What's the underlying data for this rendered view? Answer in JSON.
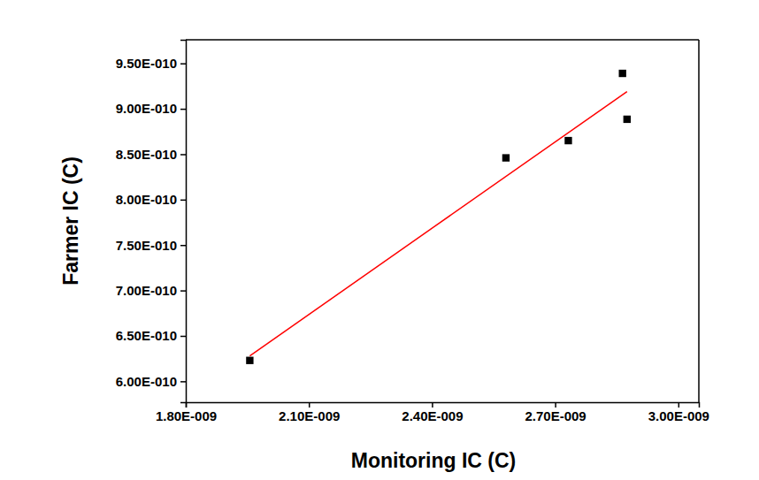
{
  "chart_data": {
    "type": "scatter",
    "x_label": "Monitoring IC (C)",
    "y_label": "Farmer IC (C)",
    "xlim": [
      1.8e-09,
      3.05e-09
    ],
    "ylim": [
      5.77e-10,
      9.76e-10
    ],
    "xticks": [
      {
        "value": 1.8e-09,
        "label": "1.80E-009"
      },
      {
        "value": 2.1e-09,
        "label": "2.10E-009"
      },
      {
        "value": 2.4e-09,
        "label": "2.40E-009"
      },
      {
        "value": 2.7e-09,
        "label": "2.70E-009"
      },
      {
        "value": 3e-09,
        "label": "3.00E-009"
      }
    ],
    "yticks": [
      {
        "value": 6e-10,
        "label": "6.00E-010"
      },
      {
        "value": 6.5e-10,
        "label": "6.50E-010"
      },
      {
        "value": 7e-10,
        "label": "7.00E-010"
      },
      {
        "value": 7.5e-10,
        "label": "7.50E-010"
      },
      {
        "value": 8e-10,
        "label": "8.00E-010"
      },
      {
        "value": 8.5e-10,
        "label": "8.50E-010"
      },
      {
        "value": 9e-10,
        "label": "9.00E-010"
      },
      {
        "value": 9.5e-10,
        "label": "9.50E-010"
      }
    ],
    "grid": false,
    "series": [
      {
        "type": "scatter",
        "color": "#000000",
        "marker": "square",
        "x": [
          1.956e-09,
          2.58e-09,
          2.732e-09,
          2.864e-09,
          2.875e-09
        ],
        "values": [
          6.23e-10,
          8.46e-10,
          8.65e-10,
          9.39e-10,
          8.885e-10
        ]
      },
      {
        "type": "line",
        "color": "#ff0000",
        "line_style": "solid",
        "x": [
          1.956e-09,
          2.875e-09
        ],
        "values": [
          6.28e-10,
          9.19e-10
        ]
      }
    ]
  }
}
